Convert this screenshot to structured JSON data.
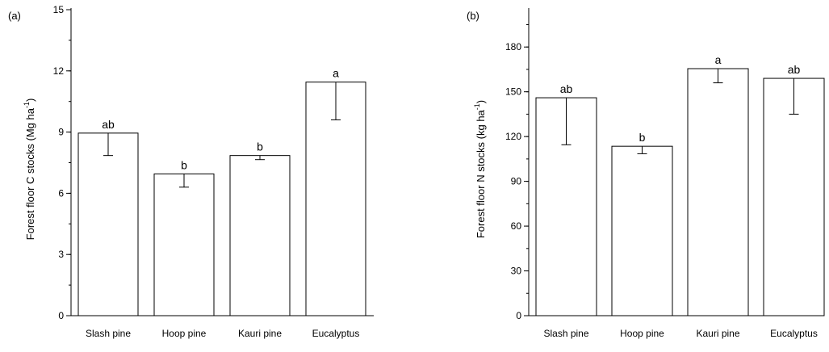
{
  "chart_data": [
    {
      "type": "bar",
      "panel_label": "(a)",
      "categories": [
        "Slash pine",
        "Hoop pine",
        "Kauri pine",
        "Eucalyptus"
      ],
      "values": [
        8.95,
        6.95,
        7.85,
        11.45
      ],
      "error_low": [
        7.85,
        6.3,
        7.65,
        9.6
      ],
      "error_high": [
        8.95,
        6.95,
        7.85,
        11.45
      ],
      "letters": [
        "ab",
        "b",
        "b",
        "a"
      ],
      "ylabel": "Forest floor C stocks (Mg ha",
      "ylabel_sup": "-1",
      "ylabel_close": ")",
      "ylim": [
        0,
        15
      ],
      "yticks": [
        0,
        3,
        6,
        9,
        12,
        15
      ],
      "ytick_labels": [
        "0",
        "3",
        "6",
        "9",
        "12",
        "15"
      ],
      "minor_step": 1.5,
      "grid": false
    },
    {
      "type": "bar",
      "panel_label": "(b)",
      "categories": [
        "Slash pine",
        "Hoop pine",
        "Kauri pine",
        "Eucalyptus"
      ],
      "values": [
        146,
        113.5,
        165.5,
        159
      ],
      "error_low": [
        114.5,
        108.5,
        156,
        135
      ],
      "error_high": [
        146,
        113.5,
        165.5,
        159
      ],
      "letters": [
        "ab",
        "b",
        "a",
        "ab"
      ],
      "ylabel": "Forest floor N stocks (kg ha",
      "ylabel_sup": "-1",
      "ylabel_close": ")",
      "ylim": [
        0,
        205
      ],
      "yticks": [
        0,
        30,
        60,
        90,
        120,
        150,
        180
      ],
      "ytick_labels": [
        "0",
        "30",
        "60",
        "90",
        "120",
        "150",
        "180"
      ],
      "minor_step": 15,
      "grid": false
    }
  ]
}
